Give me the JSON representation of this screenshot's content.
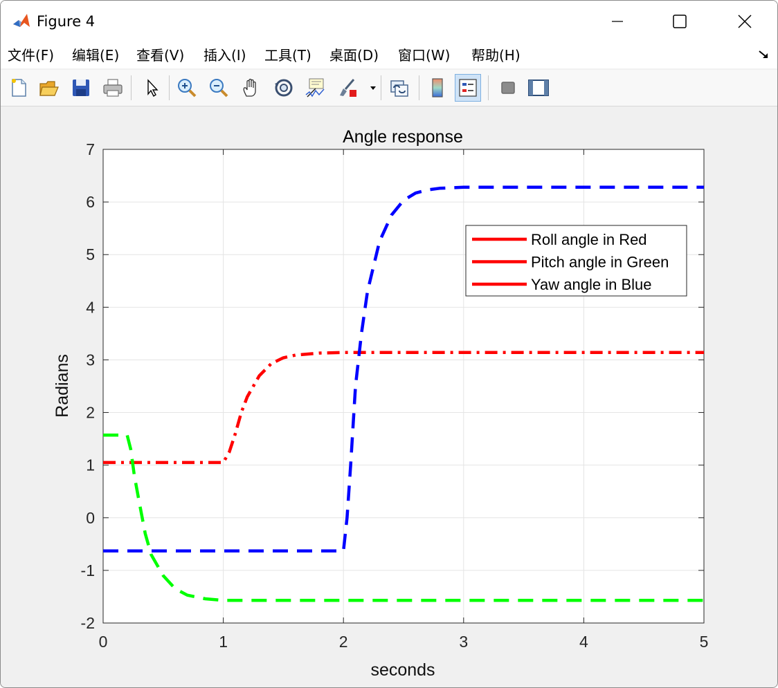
{
  "window": {
    "title": "Figure 4",
    "controls": {
      "minimize": "minimize",
      "maximize": "maximize",
      "close": "close"
    }
  },
  "menubar": {
    "items": [
      {
        "label": "文件(F)"
      },
      {
        "label": "编辑(E)"
      },
      {
        "label": "查看(V)"
      },
      {
        "label": "插入(I)"
      },
      {
        "label": "工具(T)"
      },
      {
        "label": "桌面(D)"
      },
      {
        "label": "窗口(W)"
      },
      {
        "label": "帮助(H)"
      }
    ]
  },
  "toolbar": {
    "buttons": [
      {
        "icon": "new-figure-icon"
      },
      {
        "icon": "open-file-icon"
      },
      {
        "icon": "save-icon"
      },
      {
        "icon": "print-icon"
      },
      {
        "icon": "edit-plot-arrow-icon"
      },
      {
        "icon": "zoom-in-icon"
      },
      {
        "icon": "zoom-out-icon"
      },
      {
        "icon": "pan-hand-icon"
      },
      {
        "icon": "rotate-3d-icon"
      },
      {
        "icon": "data-cursor-icon"
      },
      {
        "icon": "brush-icon"
      },
      {
        "icon": "link-plot-icon"
      },
      {
        "icon": "colorbar-icon"
      },
      {
        "icon": "legend-icon"
      },
      {
        "icon": "hide-plot-tools-icon"
      },
      {
        "icon": "show-plot-tools-icon"
      }
    ]
  },
  "chart_data": {
    "type": "line",
    "title": "Angle response",
    "xlabel": "seconds",
    "ylabel": "Radians",
    "xlim": [
      0,
      5
    ],
    "ylim": [
      -2,
      7
    ],
    "xticks": [
      "0",
      "1",
      "2",
      "3",
      "4",
      "5"
    ],
    "yticks": [
      "-2",
      "-1",
      "0",
      "1",
      "2",
      "3",
      "4",
      "5",
      "6",
      "7"
    ],
    "grid": true,
    "legend_position": "top-right",
    "legend": [
      "Roll angle in Red",
      "Pitch angle in Green",
      "Yaw angle in Blue"
    ],
    "series": [
      {
        "color": "#ff0000",
        "style": "dash-dot",
        "points": [
          [
            0,
            1.05
          ],
          [
            1.0,
            1.05
          ],
          [
            1.05,
            1.25
          ],
          [
            1.1,
            1.6
          ],
          [
            1.15,
            2.0
          ],
          [
            1.2,
            2.3
          ],
          [
            1.3,
            2.7
          ],
          [
            1.4,
            2.93
          ],
          [
            1.5,
            3.04
          ],
          [
            1.6,
            3.09
          ],
          [
            1.8,
            3.13
          ],
          [
            2.0,
            3.14
          ],
          [
            3.0,
            3.14
          ],
          [
            5.0,
            3.14
          ]
        ]
      },
      {
        "color": "#00ff00",
        "style": "dash",
        "points": [
          [
            0,
            1.57
          ],
          [
            0.2,
            1.57
          ],
          [
            0.23,
            1.3
          ],
          [
            0.26,
            0.8
          ],
          [
            0.3,
            0.3
          ],
          [
            0.35,
            -0.3
          ],
          [
            0.4,
            -0.7
          ],
          [
            0.5,
            -1.1
          ],
          [
            0.6,
            -1.35
          ],
          [
            0.7,
            -1.47
          ],
          [
            0.85,
            -1.54
          ],
          [
            1.0,
            -1.57
          ],
          [
            2.0,
            -1.57
          ],
          [
            5.0,
            -1.57
          ]
        ]
      },
      {
        "color": "#0000ff",
        "style": "dash",
        "points": [
          [
            0,
            -0.63
          ],
          [
            2.0,
            -0.63
          ],
          [
            2.03,
            0.0
          ],
          [
            2.06,
            1.0
          ],
          [
            2.1,
            2.5
          ],
          [
            2.15,
            3.5
          ],
          [
            2.2,
            4.3
          ],
          [
            2.3,
            5.25
          ],
          [
            2.4,
            5.75
          ],
          [
            2.5,
            6.03
          ],
          [
            2.6,
            6.17
          ],
          [
            2.7,
            6.23
          ],
          [
            2.8,
            6.26
          ],
          [
            3.0,
            6.28
          ],
          [
            4.0,
            6.28
          ],
          [
            5.0,
            6.28
          ]
        ]
      }
    ]
  }
}
